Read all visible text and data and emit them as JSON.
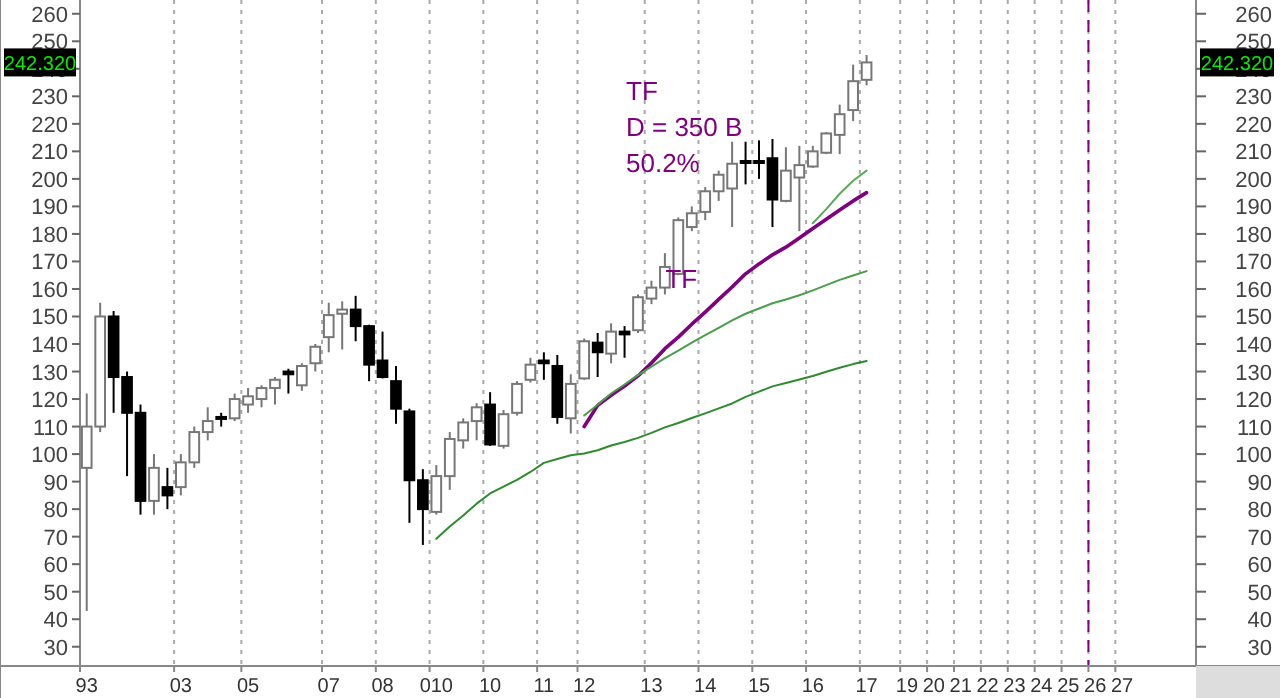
{
  "chart_data": {
    "type": "candlestick",
    "categories": [
      "93",
      null,
      null,
      null,
      null,
      null,
      null,
      "03",
      null,
      null,
      null,
      null,
      "05",
      null,
      null,
      null,
      null,
      null,
      "07",
      null,
      null,
      null,
      "08",
      null,
      null,
      null,
      "010",
      null,
      null,
      null,
      "10",
      null,
      null,
      null,
      "11",
      null,
      null,
      "12",
      null,
      null,
      null,
      null,
      "13",
      null,
      null,
      null,
      "14",
      null,
      null,
      null,
      "15",
      null,
      null,
      null,
      "16",
      null,
      null,
      null,
      "17",
      null,
      null,
      "19",
      null,
      "20",
      null,
      "21",
      null,
      "22",
      null,
      "23",
      null,
      "24",
      null,
      "25",
      null,
      "26",
      null,
      "27",
      null,
      null,
      null,
      null,
      null
    ],
    "ohlc": [
      [
        95,
        122,
        43,
        110
      ],
      [
        110,
        155,
        108,
        150
      ],
      [
        150,
        152,
        115,
        128
      ],
      [
        128,
        130,
        92,
        115
      ],
      [
        115,
        118,
        78,
        83
      ],
      [
        83,
        100,
        78,
        95
      ],
      [
        88,
        95,
        80,
        85
      ],
      [
        88,
        100,
        85,
        97
      ],
      [
        97,
        110,
        95,
        108
      ],
      [
        108,
        117,
        105,
        112
      ],
      [
        113.5,
        115,
        110,
        113
      ],
      [
        113,
        122,
        112,
        120
      ],
      [
        118,
        124,
        115,
        121
      ],
      [
        120,
        125,
        117,
        124
      ],
      [
        124,
        128,
        118,
        127
      ],
      [
        130,
        131,
        122,
        129
      ],
      [
        125,
        133,
        123,
        132
      ],
      [
        133,
        140,
        130,
        139
      ],
      [
        142.5,
        155,
        137,
        150.5
      ],
      [
        151,
        155.5,
        138,
        152.5
      ],
      [
        152.5,
        157.5,
        141,
        146.5
      ],
      [
        146.5,
        147,
        126.5,
        132.5
      ],
      [
        134,
        144.5,
        127.5,
        128
      ],
      [
        126.5,
        132,
        111,
        116.5
      ],
      [
        115.5,
        116.5,
        75,
        90.5
      ],
      [
        90.5,
        94.5,
        67,
        80
      ],
      [
        79,
        96,
        78,
        92
      ],
      [
        92,
        108,
        87,
        105.5
      ],
      [
        105,
        113,
        102,
        111.5
      ],
      [
        112,
        118.5,
        105,
        117
      ],
      [
        118,
        122.5,
        103,
        103.5
      ],
      [
        103,
        116,
        102,
        114.5
      ],
      [
        115,
        126.5,
        114,
        125.5
      ],
      [
        127,
        135,
        126,
        132.5
      ],
      [
        134,
        137,
        127,
        133
      ],
      [
        132,
        136,
        111,
        113.5
      ],
      [
        113,
        129,
        107.5,
        125.5
      ],
      [
        127.5,
        142,
        127,
        141
      ],
      [
        140.5,
        144,
        128,
        137
      ],
      [
        136.5,
        147.5,
        133,
        144.5
      ],
      [
        144.5,
        146.5,
        135,
        143.5
      ],
      [
        145,
        158,
        144,
        157
      ],
      [
        156.5,
        163,
        154.5,
        160.5
      ],
      [
        160.5,
        173,
        158,
        168
      ],
      [
        165.5,
        186,
        165,
        185
      ],
      [
        182.5,
        190,
        181,
        187.5
      ],
      [
        188,
        197,
        185,
        195.5
      ],
      [
        195.5,
        203,
        192,
        201.5
      ],
      [
        196.5,
        213.5,
        182.5,
        205.5
      ],
      [
        206.5,
        213.5,
        198,
        206
      ],
      [
        206.5,
        214,
        200,
        206
      ],
      [
        207.5,
        214.5,
        182.5,
        192.5
      ],
      [
        192,
        211.5,
        191.5,
        203
      ],
      [
        200.5,
        212,
        181,
        205
      ],
      [
        204.5,
        212,
        204,
        210
      ],
      [
        209.5,
        217,
        209,
        216.5
      ],
      [
        216,
        227,
        209,
        223.5
      ],
      [
        225,
        241.5,
        221,
        235.5
      ],
      [
        236,
        245,
        234,
        242.32
      ],
      null,
      null,
      null,
      null,
      null,
      null,
      null,
      null,
      null,
      null,
      null,
      null,
      null,
      null,
      null,
      null,
      null,
      null,
      null,
      null,
      null,
      null,
      null,
      null
    ],
    "series": [
      {
        "type": "line",
        "name": "TF",
        "color": "#800080",
        "values": [
          null,
          null,
          null,
          null,
          null,
          null,
          null,
          null,
          null,
          null,
          null,
          null,
          null,
          null,
          null,
          null,
          null,
          null,
          null,
          null,
          null,
          null,
          null,
          null,
          null,
          null,
          null,
          null,
          null,
          null,
          null,
          null,
          null,
          null,
          null,
          null,
          null,
          110,
          117.7,
          121.4,
          124.7,
          128.4,
          133.1,
          138.3,
          142.5,
          147.2,
          151.6,
          156.2,
          160.7,
          165.5,
          169.1,
          172.4,
          175.2,
          178.5,
          182,
          185.3,
          188.7,
          192,
          195,
          null,
          null,
          null,
          null,
          null,
          null,
          null,
          null,
          null,
          null,
          null,
          null,
          null,
          null,
          null,
          null,
          null,
          null,
          null,
          null,
          null,
          null,
          null,
          null
        ]
      },
      {
        "type": "line",
        "color": "#5aab5a",
        "values": [
          null,
          null,
          null,
          null,
          null,
          null,
          null,
          null,
          null,
          null,
          null,
          null,
          null,
          null,
          null,
          null,
          null,
          null,
          null,
          null,
          null,
          null,
          null,
          null,
          null,
          null,
          null,
          null,
          null,
          null,
          null,
          null,
          null,
          null,
          null,
          null,
          null,
          null,
          null,
          null,
          null,
          null,
          null,
          null,
          null,
          null,
          null,
          null,
          null,
          null,
          null,
          null,
          null,
          null,
          183.9,
          189,
          194.6,
          199.3,
          203,
          null,
          null,
          null,
          null,
          null,
          null,
          null,
          null,
          null,
          null,
          null,
          null,
          null,
          null,
          null,
          null,
          null,
          null,
          null,
          null,
          null,
          null,
          null,
          null
        ]
      },
      {
        "type": "line",
        "color": "#4a9f4a",
        "values": [
          null,
          null,
          null,
          null,
          null,
          null,
          null,
          null,
          null,
          null,
          null,
          null,
          null,
          null,
          null,
          null,
          null,
          null,
          null,
          null,
          null,
          null,
          null,
          null,
          null,
          null,
          null,
          null,
          null,
          null,
          null,
          null,
          null,
          null,
          null,
          null,
          null,
          114,
          117.9,
          122,
          125.3,
          128.7,
          131.8,
          134.9,
          137.6,
          140.5,
          143.2,
          145.9,
          148.6,
          151,
          152.9,
          154.8,
          156.2,
          157.7,
          159.5,
          161.4,
          163.3,
          164.9,
          166.5,
          null,
          null,
          null,
          null,
          null,
          null,
          null,
          null,
          null,
          null,
          null,
          null,
          null,
          null,
          null,
          null,
          null,
          null,
          null,
          null,
          null,
          null,
          null,
          null
        ]
      },
      {
        "type": "line",
        "color": "#2e8b2e",
        "values": [
          null,
          null,
          null,
          null,
          null,
          null,
          null,
          null,
          null,
          null,
          null,
          null,
          null,
          null,
          null,
          null,
          null,
          null,
          null,
          null,
          null,
          null,
          null,
          null,
          null,
          null,
          69.2,
          73.7,
          77.7,
          82,
          85.7,
          88.2,
          90.6,
          93.5,
          96.8,
          98.2,
          99.6,
          100.2,
          101.4,
          103.1,
          104.4,
          105.9,
          107.7,
          109.7,
          111.3,
          113.1,
          114.8,
          116.6,
          118.4,
          120.8,
          122.7,
          124.6,
          125.8,
          127.1,
          128.4,
          129.9,
          131.4,
          132.7,
          133.8,
          null,
          null,
          null,
          null,
          null,
          null,
          null,
          null,
          null,
          null,
          null,
          null,
          null,
          null,
          null,
          null,
          null,
          null,
          null,
          null,
          null,
          null,
          null,
          null
        ]
      }
    ],
    "ylim": [
      23,
      265
    ],
    "yticks": [
      30,
      40,
      50,
      60,
      70,
      80,
      90,
      100,
      110,
      120,
      130,
      140,
      150,
      160,
      170,
      180,
      190,
      200,
      210,
      220,
      230,
      240,
      250,
      260
    ],
    "y2lim": [
      23,
      265
    ],
    "y2ticks": [
      30,
      40,
      50,
      60,
      70,
      80,
      90,
      100,
      110,
      120,
      130,
      140,
      150,
      160,
      170,
      180,
      190,
      200,
      210,
      220,
      230,
      240,
      250,
      260
    ],
    "grid": "x",
    "ref_lines": [
      {
        "axis": "x",
        "value": "26",
        "color": "#800080",
        "line_style": "dashed"
      }
    ],
    "annotations": [
      "TF",
      "D = 350 B",
      "50.2%",
      {
        "text": "242.320",
        "y": 242.32
      }
    ]
  }
}
